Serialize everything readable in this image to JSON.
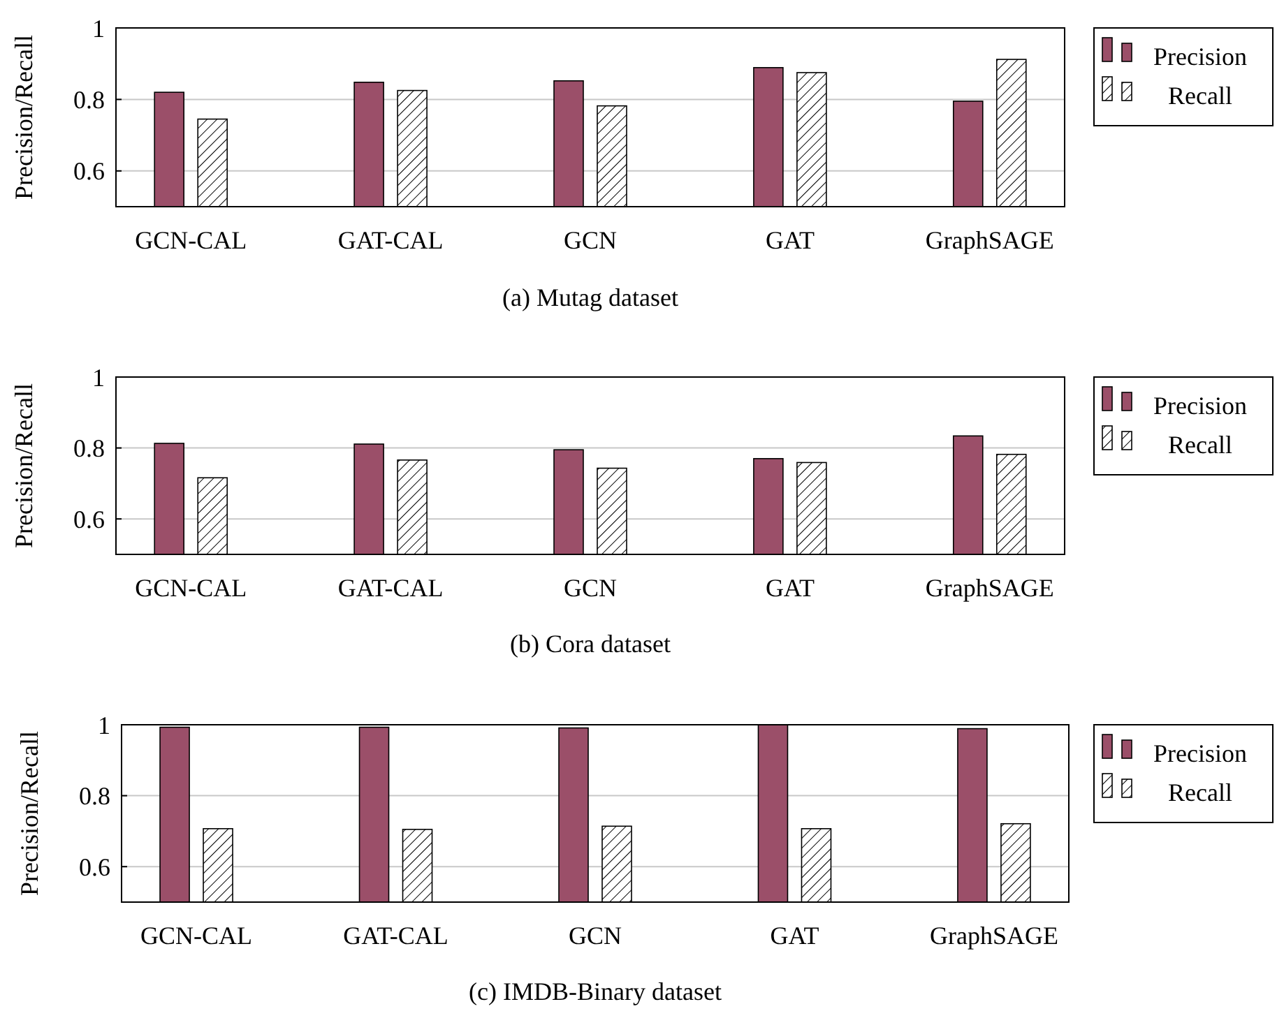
{
  "chart_data": [
    {
      "type": "bar",
      "ylabel": "Precision/Recall",
      "categories": [
        "GCN-CAL",
        "GAT-CAL",
        "GCN",
        "GAT",
        "GraphSAGE"
      ],
      "ylim": [
        0.5,
        1
      ],
      "yticks": [
        0.6,
        0.8,
        1
      ],
      "grid": "y",
      "legend": "top right",
      "annotations": [
        "(a) Mutag dataset"
      ],
      "series": [
        {
          "name": "Precision",
          "color": "#9b4f69",
          "values": [
            0.82,
            0.848,
            0.852,
            0.889,
            0.795
          ]
        },
        {
          "name": "Recall",
          "color": "#000000",
          "values": [
            0.745,
            0.825,
            0.782,
            0.875,
            0.912
          ]
        }
      ]
    },
    {
      "type": "bar",
      "ylabel": "Precision/Recall",
      "categories": [
        "GCN-CAL",
        "GAT-CAL",
        "GCN",
        "GAT",
        "GraphSAGE"
      ],
      "ylim": [
        0.5,
        1
      ],
      "yticks": [
        0.6,
        0.8,
        1
      ],
      "grid": "y",
      "legend": "top right",
      "annotations": [
        "(b) Cora dataset"
      ],
      "series": [
        {
          "name": "Precision",
          "color": "#9b4f69",
          "values": [
            0.813,
            0.811,
            0.795,
            0.77,
            0.834
          ]
        },
        {
          "name": "Recall",
          "color": "#000000",
          "values": [
            0.716,
            0.766,
            0.743,
            0.759,
            0.782
          ]
        }
      ]
    },
    {
      "type": "bar",
      "ylabel": "Precision/Recall",
      "categories": [
        "GCN-CAL",
        "GAT-CAL",
        "GCN",
        "GAT",
        "GraphSAGE"
      ],
      "ylim": [
        0.5,
        1
      ],
      "yticks": [
        0.6,
        0.8,
        1
      ],
      "grid": "y",
      "legend": "top right",
      "annotations": [
        "(c) IMDB-Binary dataset"
      ],
      "series": [
        {
          "name": "Precision",
          "color": "#9b4f69",
          "values": [
            0.993,
            0.993,
            0.991,
            1.0,
            0.989
          ]
        },
        {
          "name": "Recall",
          "color": "#000000",
          "values": [
            0.707,
            0.705,
            0.714,
            0.707,
            0.721
          ]
        }
      ]
    }
  ]
}
